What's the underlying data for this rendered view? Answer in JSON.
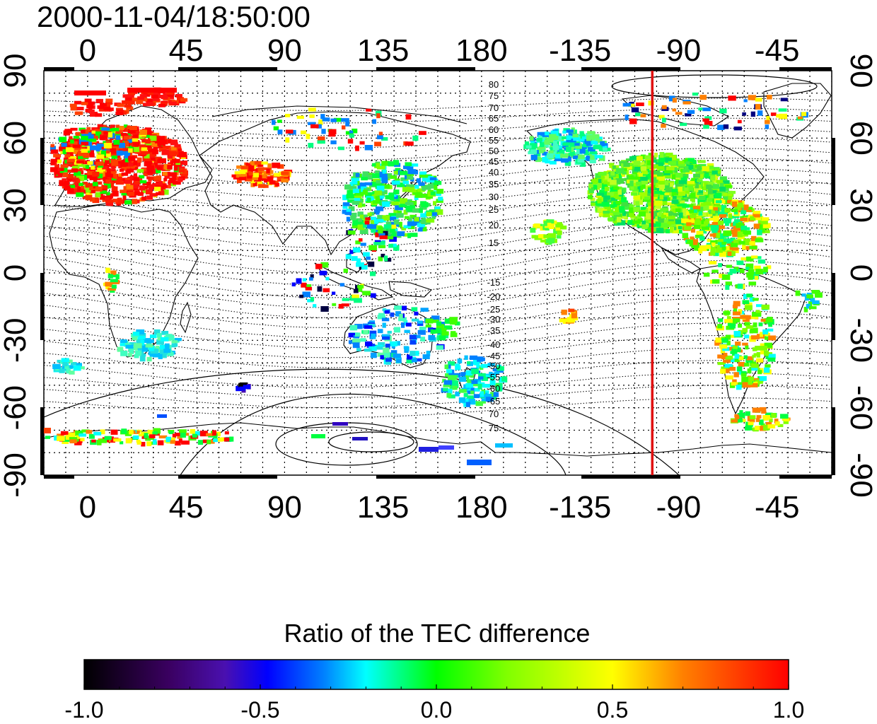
{
  "timestamp": "2000-11-04/18:50:00",
  "map": {
    "lon_ticks_top": [
      "0",
      "45",
      "90",
      "135",
      "180",
      "-135",
      "-90",
      "-45"
    ],
    "lon_ticks_bottom": [
      "0",
      "45",
      "90",
      "135",
      "180",
      "-135",
      "-90",
      "-45"
    ],
    "lat_ticks_left": [
      "90",
      "60",
      "30",
      "0",
      "-30",
      "-60",
      "-90"
    ],
    "lat_ticks_right": [
      "90",
      "60",
      "30",
      "0",
      "-30",
      "-60",
      "-90"
    ],
    "lon_range": [
      -20,
      340
    ],
    "lat_range": [
      -90,
      90
    ],
    "magnetic_latitude_labels_north": [
      "80",
      "75",
      "70",
      "65",
      "60",
      "55",
      "50",
      "45",
      "40",
      "35",
      "30",
      "25",
      "20",
      "15"
    ],
    "magnetic_latitude_labels_south": [
      "-15",
      "-20",
      "-25",
      "-30",
      "-35",
      "-40",
      "-45",
      "-50",
      "-55",
      "-60",
      "-65",
      "70",
      "75"
    ],
    "terminator_longitude": -102,
    "terminator_color": "#e01010"
  },
  "colorbar": {
    "title": "Ratio of the TEC difference",
    "tick_labels": [
      "-1.0",
      "-0.5",
      "0.0",
      "0.5",
      "1.0"
    ],
    "range": [
      -1.0,
      1.0
    ],
    "colormap": [
      "#000000",
      "#3a0060",
      "#4a10b0",
      "#0000ff",
      "#0080ff",
      "#00ffff",
      "#00ff80",
      "#00ff00",
      "#80ff00",
      "#ffff00",
      "#ff8000",
      "#ff0000"
    ]
  }
}
